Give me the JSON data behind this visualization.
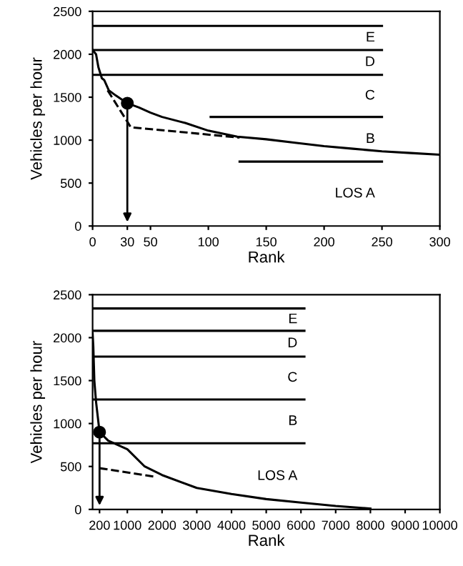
{
  "chart_data": [
    {
      "type": "line",
      "xlabel": "Rank",
      "ylabel": "Vehicles per hour",
      "xlim": [
        0,
        300
      ],
      "ylim": [
        0,
        2500
      ],
      "xticks": [
        0,
        30,
        50,
        100,
        150,
        200,
        250,
        300
      ],
      "yticks": [
        0,
        500,
        1000,
        1500,
        2000,
        2500
      ],
      "grid": false,
      "legend": false,
      "series": [
        {
          "color": "#000000",
          "line_style": "solid",
          "x": [
            0,
            3,
            5,
            8,
            10,
            14,
            20,
            30,
            40,
            50,
            60,
            80,
            100,
            125,
            150,
            175,
            200,
            225,
            250,
            275,
            300
          ],
          "values": [
            2050,
            2000,
            1850,
            1720,
            1700,
            1580,
            1520,
            1430,
            1380,
            1320,
            1270,
            1200,
            1110,
            1040,
            1010,
            970,
            930,
            900,
            870,
            850,
            830
          ]
        },
        {
          "color": "#000000",
          "line_style": "dashed",
          "x": [
            13,
            33,
            127
          ],
          "values": [
            1580,
            1150,
            1030
          ]
        },
        {
          "color": "#000000",
          "line_style": "solid",
          "x": [
            0,
            250
          ],
          "values": [
            2330,
            2330
          ]
        },
        {
          "color": "#000000",
          "line_style": "solid",
          "x": [
            0,
            250
          ],
          "values": [
            2050,
            2050
          ]
        },
        {
          "color": "#000000",
          "line_style": "solid",
          "x": [
            0,
            250
          ],
          "values": [
            1760,
            1760
          ]
        },
        {
          "color": "#000000",
          "line_style": "solid",
          "x": [
            102,
            250
          ],
          "values": [
            1270,
            1270
          ]
        },
        {
          "color": "#000000",
          "line_style": "solid",
          "x": [
            127,
            250
          ],
          "values": [
            750,
            750
          ]
        },
        {
          "type": "scatter",
          "color": "#000000",
          "marker": "circle",
          "x": [
            30
          ],
          "values": [
            1430
          ]
        }
      ],
      "annotations": [
        "E",
        "D",
        "C",
        "B",
        "LOS A"
      ]
    },
    {
      "type": "line",
      "xlabel": "Rank",
      "ylabel": "Vehicles per hour",
      "xlim": [
        0,
        10000
      ],
      "ylim": [
        0,
        2500
      ],
      "xticks": [
        200,
        1000,
        2000,
        3000,
        4000,
        5000,
        6000,
        7000,
        8000,
        9000,
        10000
      ],
      "yticks": [
        0,
        500,
        1000,
        1500,
        2000,
        2500
      ],
      "grid": false,
      "legend": false,
      "series": [
        {
          "color": "#000000",
          "line_style": "solid",
          "x": [
            0,
            20,
            50,
            100,
            200,
            450,
            1000,
            1500,
            2000,
            3000,
            4000,
            5000,
            6000,
            7000,
            8000
          ],
          "values": [
            2050,
            1900,
            1500,
            1250,
            900,
            800,
            700,
            500,
            400,
            250,
            180,
            120,
            80,
            40,
            10
          ]
        },
        {
          "color": "#000000",
          "line_style": "dashed",
          "x": [
            200,
            1800
          ],
          "values": [
            480,
            380
          ]
        },
        {
          "color": "#000000",
          "line_style": "solid",
          "x": [
            0,
            6100
          ],
          "values": [
            2340,
            2340
          ]
        },
        {
          "color": "#000000",
          "line_style": "solid",
          "x": [
            0,
            6100
          ],
          "values": [
            2080,
            2080
          ]
        },
        {
          "color": "#000000",
          "line_style": "solid",
          "x": [
            0,
            6100
          ],
          "values": [
            1780,
            1780
          ]
        },
        {
          "color": "#000000",
          "line_style": "solid",
          "x": [
            0,
            6100
          ],
          "values": [
            1280,
            1280
          ]
        },
        {
          "color": "#000000",
          "line_style": "solid",
          "x": [
            0,
            6100
          ],
          "values": [
            770,
            770
          ]
        },
        {
          "type": "scatter",
          "color": "#000000",
          "marker": "circle",
          "x": [
            200
          ],
          "values": [
            900
          ]
        }
      ],
      "annotations": [
        "E",
        "D",
        "C",
        "B",
        "LOS A"
      ]
    }
  ]
}
